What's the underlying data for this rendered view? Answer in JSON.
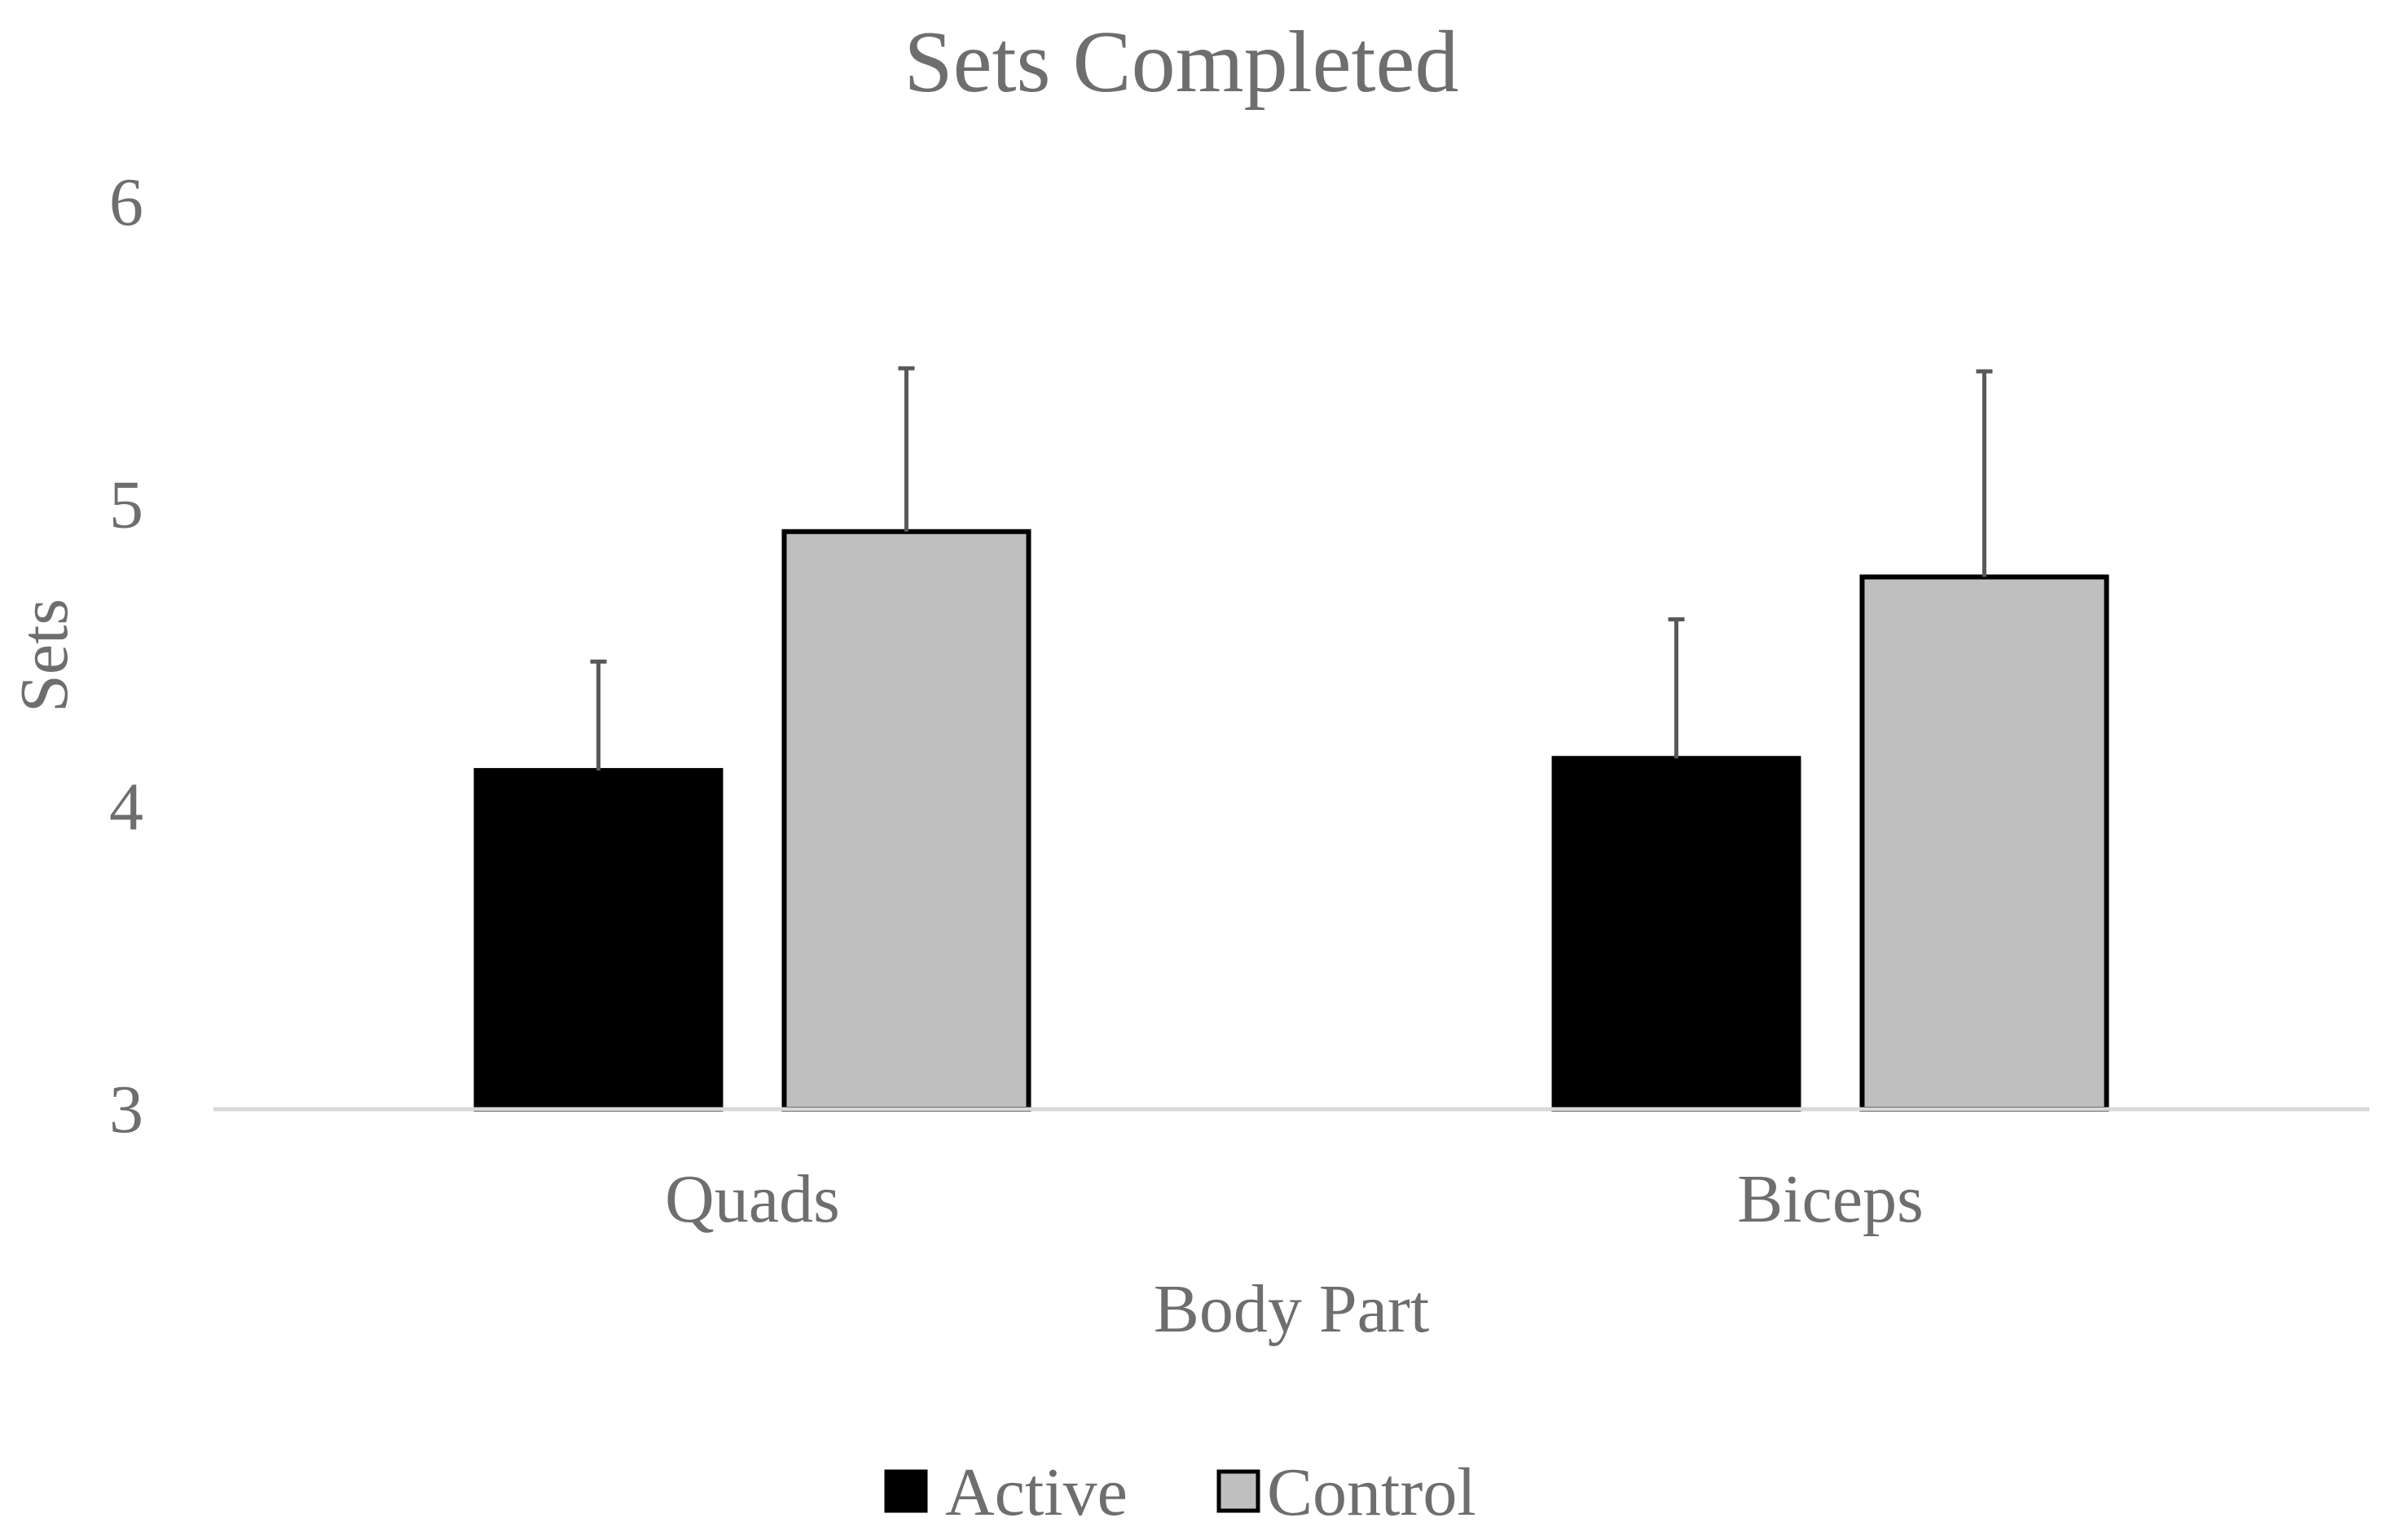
{
  "chart_data": {
    "type": "bar",
    "title": "Sets Completed",
    "xlabel": "Body Part",
    "ylabel": "Sets",
    "ylim": [
      3,
      6
    ],
    "yticks": [
      3,
      4,
      5,
      6
    ],
    "categories": [
      "Quads",
      "Biceps"
    ],
    "series": [
      {
        "name": "Active",
        "values": [
          4.12,
          4.16
        ],
        "error_plus": [
          0.36,
          0.46
        ],
        "color": "#000000"
      },
      {
        "name": "Control",
        "values": [
          4.91,
          4.76
        ],
        "error_plus": [
          0.54,
          0.68
        ],
        "color": "#bfbfbf"
      }
    ],
    "legend_position": "bottom-center",
    "grid": false
  }
}
